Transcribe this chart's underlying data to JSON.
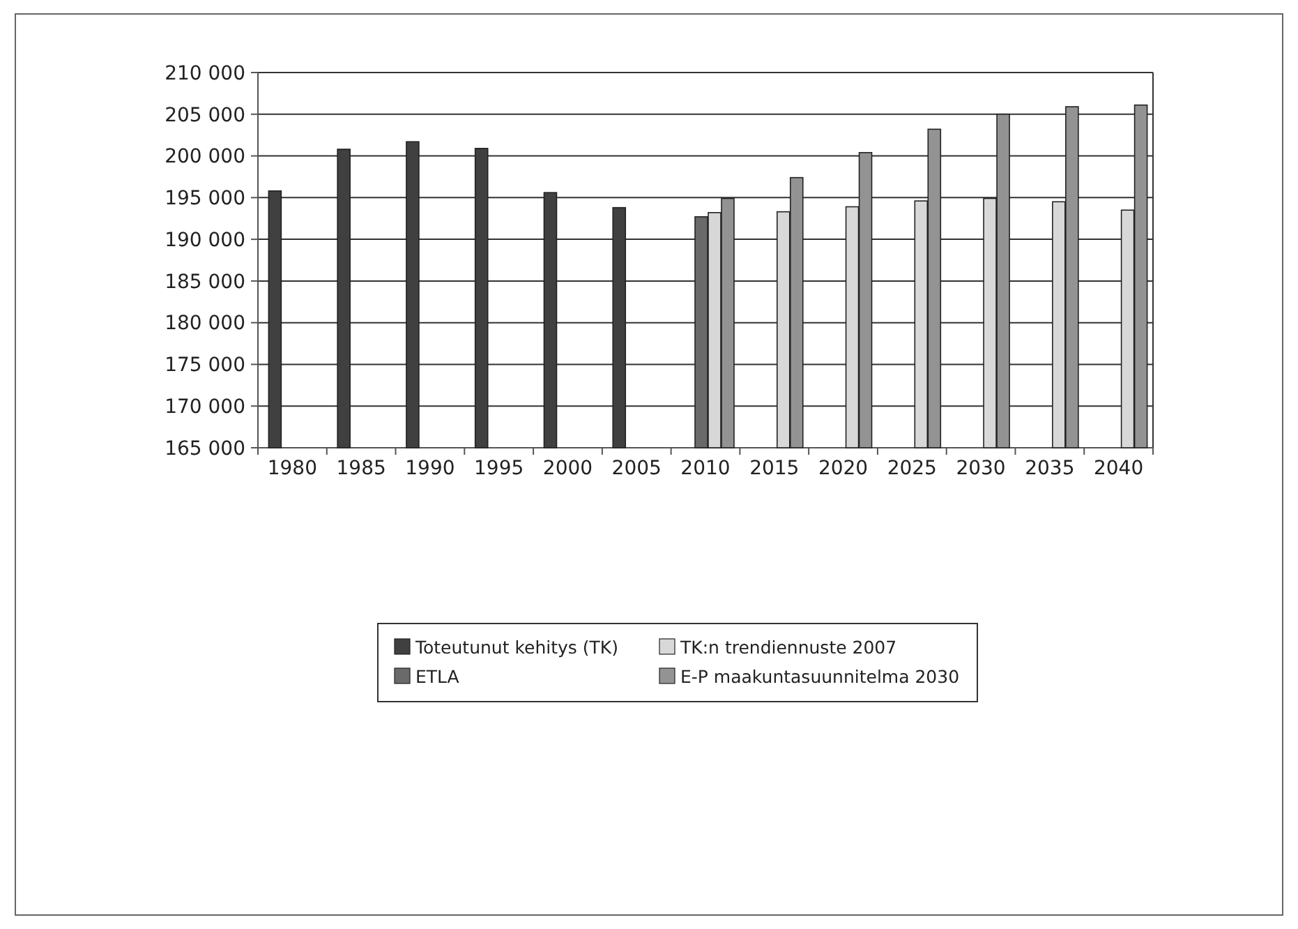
{
  "chart_data": {
    "type": "bar",
    "categories": [
      "1980",
      "1985",
      "1990",
      "1995",
      "2000",
      "2005",
      "2010",
      "2015",
      "2020",
      "2025",
      "2030",
      "2035",
      "2040"
    ],
    "series": [
      {
        "name": "Toteutunut kehitys (TK)",
        "color": "#404040",
        "values": [
          195800,
          200800,
          201700,
          200900,
          195600,
          193800,
          null,
          null,
          null,
          null,
          null,
          null,
          null
        ]
      },
      {
        "name": "ETLA",
        "color": "#6a6a6a",
        "values": [
          null,
          null,
          null,
          null,
          null,
          null,
          192700,
          null,
          null,
          null,
          null,
          null,
          null
        ]
      },
      {
        "name": "TK:n trendiennuste 2007",
        "color": "#d8d8d8",
        "values": [
          null,
          null,
          null,
          null,
          null,
          null,
          193200,
          193300,
          193900,
          194600,
          194900,
          194500,
          193500
        ]
      },
      {
        "name": "E-P maakuntasuunnitelma 2030",
        "color": "#939393",
        "values": [
          null,
          null,
          null,
          null,
          null,
          null,
          194900,
          197400,
          200400,
          203200,
          205000,
          205900,
          206100
        ]
      }
    ],
    "ylim": [
      165000,
      210000
    ],
    "yticks": [
      {
        "value": 165000,
        "label": "165 000"
      },
      {
        "value": 170000,
        "label": "170 000"
      },
      {
        "value": 175000,
        "label": "175 000"
      },
      {
        "value": 180000,
        "label": "180 000"
      },
      {
        "value": 185000,
        "label": "185 000"
      },
      {
        "value": 190000,
        "label": "190 000"
      },
      {
        "value": 195000,
        "label": "195 000"
      },
      {
        "value": 200000,
        "label": "200 000"
      },
      {
        "value": 205000,
        "label": "205 000"
      },
      {
        "value": 210000,
        "label": "210 000"
      }
    ],
    "grid": "y",
    "legend": "bottom"
  }
}
